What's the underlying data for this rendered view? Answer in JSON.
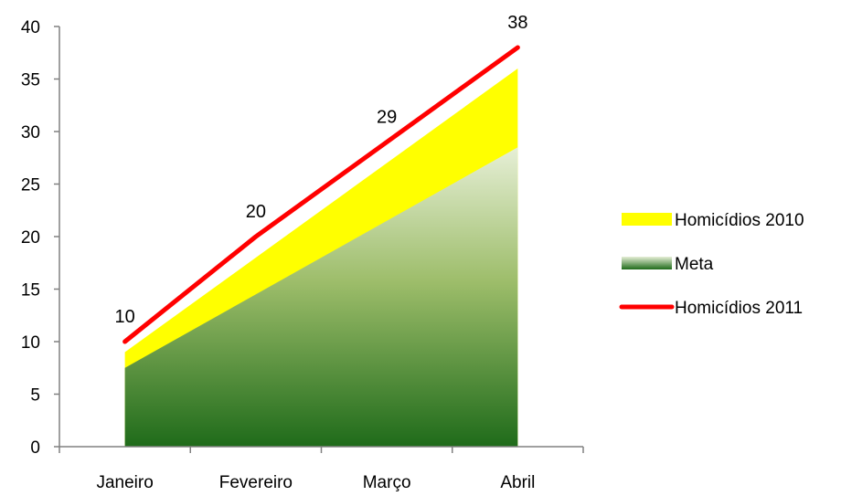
{
  "chart_data": {
    "type": "area",
    "title": "",
    "xlabel": "",
    "ylabel": "",
    "ylim": [
      0,
      40
    ],
    "yticks": [
      "0",
      "5",
      "10",
      "15",
      "20",
      "25",
      "30",
      "35",
      "40"
    ],
    "categories": [
      "Janeiro",
      "Fevereiro",
      "Março",
      "Abril"
    ],
    "grid": false,
    "legend_position": "right",
    "series": [
      {
        "name": "Homicídios 2010",
        "kind": "area",
        "color": "#ffff00",
        "values": [
          9,
          18,
          27,
          36
        ]
      },
      {
        "name": "Meta",
        "kind": "area",
        "color_top": "#e6efd6",
        "color_bottom": "#1f6b1a",
        "values": [
          7.5,
          14.5,
          21.5,
          28.5
        ]
      },
      {
        "name": "Homicídios 2011",
        "kind": "line",
        "color": "#ff0000",
        "values": [
          10,
          20,
          29,
          38
        ],
        "data_labels": [
          "10",
          "20",
          "29",
          "38"
        ]
      }
    ]
  }
}
